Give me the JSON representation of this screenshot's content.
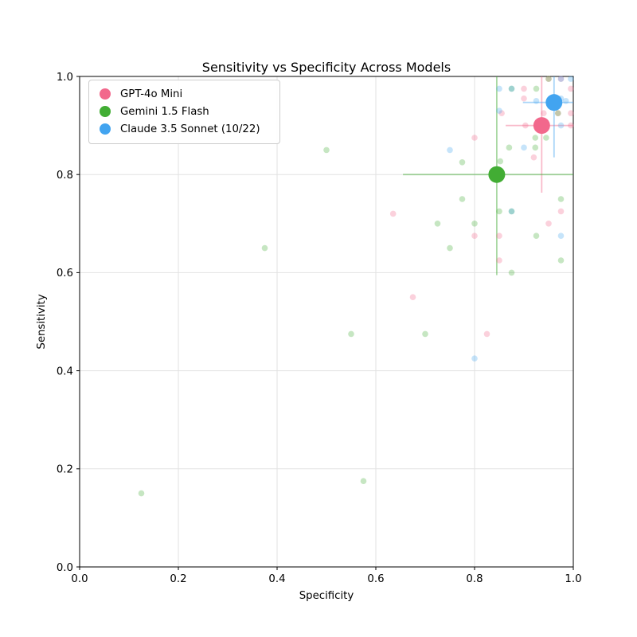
{
  "title": "Sensitivity vs Specificity Across Models",
  "axes": {
    "xlabel": "Specificity",
    "ylabel": "Sensitivity",
    "xlim": [
      0.0,
      1.0
    ],
    "ylim": [
      0.0,
      1.0
    ],
    "xticks": [
      0.0,
      0.2,
      0.4,
      0.6,
      0.8,
      1.0
    ],
    "xtick_labels": [
      "0.0",
      "0.2",
      "0.4",
      "0.6",
      "0.8",
      "1.0"
    ],
    "yticks": [
      0.0,
      0.2,
      0.4,
      0.6,
      0.8,
      1.0
    ],
    "ytick_labels": [
      "0.0",
      "0.2",
      "0.4",
      "0.6",
      "0.8",
      "1.0"
    ],
    "grid": true,
    "grid_color": "#e2e2e2",
    "spine_color": "#000000"
  },
  "legend": {
    "position": "upper-left"
  },
  "chart_data": {
    "type": "scatter",
    "title": "Sensitivity vs Specificity Across Models",
    "xlabel": "Specificity",
    "ylabel": "Sensitivity",
    "xlim": [
      0.0,
      1.0
    ],
    "ylim": [
      0.0,
      1.0
    ],
    "grid": true,
    "legend_position": "upper left",
    "series": [
      {
        "name": "GPT-4o Mini",
        "color": "#f2688c",
        "point_alpha": 0.3,
        "summary": {
          "x": 0.936,
          "y": 0.9,
          "xerr_lo": 0.863,
          "xerr_hi": 1.0,
          "yerr_lo": 0.763,
          "yerr_hi": 1.0
        },
        "points": [
          [
            0.675,
            0.55
          ],
          [
            0.825,
            0.475
          ],
          [
            0.8,
            0.675
          ],
          [
            0.85,
            0.675
          ],
          [
            0.95,
            0.7
          ],
          [
            0.975,
            0.725
          ],
          [
            0.85,
            0.625
          ],
          [
            0.8,
            0.875
          ],
          [
            0.635,
            0.72
          ],
          [
            0.9,
            0.975
          ],
          [
            0.9,
            0.955
          ],
          [
            0.95,
            0.995
          ],
          [
            0.975,
            0.995
          ],
          [
            0.995,
            0.975
          ],
          [
            0.995,
            0.925
          ],
          [
            0.995,
            0.9
          ],
          [
            0.969,
            0.925
          ],
          [
            0.94,
            0.925
          ],
          [
            0.92,
            0.835
          ],
          [
            0.855,
            0.925
          ],
          [
            0.903,
            0.9
          ]
        ]
      },
      {
        "name": "Gemini 1.5 Flash",
        "color": "#42ad34",
        "point_alpha": 0.3,
        "summary": {
          "x": 0.845,
          "y": 0.8,
          "xerr_lo": 0.655,
          "xerr_hi": 1.0,
          "yerr_lo": 0.595,
          "yerr_hi": 1.0
        },
        "points": [
          [
            0.125,
            0.15
          ],
          [
            0.575,
            0.175
          ],
          [
            0.375,
            0.65
          ],
          [
            0.5,
            0.85
          ],
          [
            0.55,
            0.475
          ],
          [
            0.7,
            0.475
          ],
          [
            0.725,
            0.7
          ],
          [
            0.75,
            0.65
          ],
          [
            0.775,
            0.75
          ],
          [
            0.775,
            0.825
          ],
          [
            0.8,
            0.7
          ],
          [
            0.852,
            0.827
          ],
          [
            0.85,
            0.725
          ],
          [
            0.875,
            0.725
          ],
          [
            0.925,
            0.675
          ],
          [
            0.975,
            0.75
          ],
          [
            0.975,
            0.625
          ],
          [
            0.875,
            0.6
          ],
          [
            0.875,
            0.975
          ],
          [
            0.925,
            0.975
          ],
          [
            0.87,
            0.855
          ],
          [
            0.923,
            0.855
          ],
          [
            0.923,
            0.875
          ],
          [
            0.945,
            0.875
          ],
          [
            0.95,
            0.995
          ],
          [
            0.969,
            0.925
          ]
        ]
      },
      {
        "name": "Claude 3.5 Sonnet (10/22)",
        "color": "#42a4f0",
        "point_alpha": 0.3,
        "summary": {
          "x": 0.961,
          "y": 0.947,
          "xerr_lo": 0.898,
          "xerr_hi": 1.0,
          "yerr_lo": 0.835,
          "yerr_hi": 1.0
        },
        "points": [
          [
            0.8,
            0.425
          ],
          [
            0.75,
            0.85
          ],
          [
            0.85,
            0.975
          ],
          [
            0.875,
            0.975
          ],
          [
            0.85,
            0.93
          ],
          [
            0.9,
            0.855
          ],
          [
            0.975,
            0.675
          ],
          [
            0.975,
            0.995
          ],
          [
            0.995,
            0.995
          ],
          [
            0.975,
            0.955
          ],
          [
            0.975,
            0.9
          ],
          [
            0.875,
            0.725
          ],
          [
            0.925,
            0.95
          ],
          [
            0.985,
            0.95
          ]
        ]
      }
    ]
  }
}
